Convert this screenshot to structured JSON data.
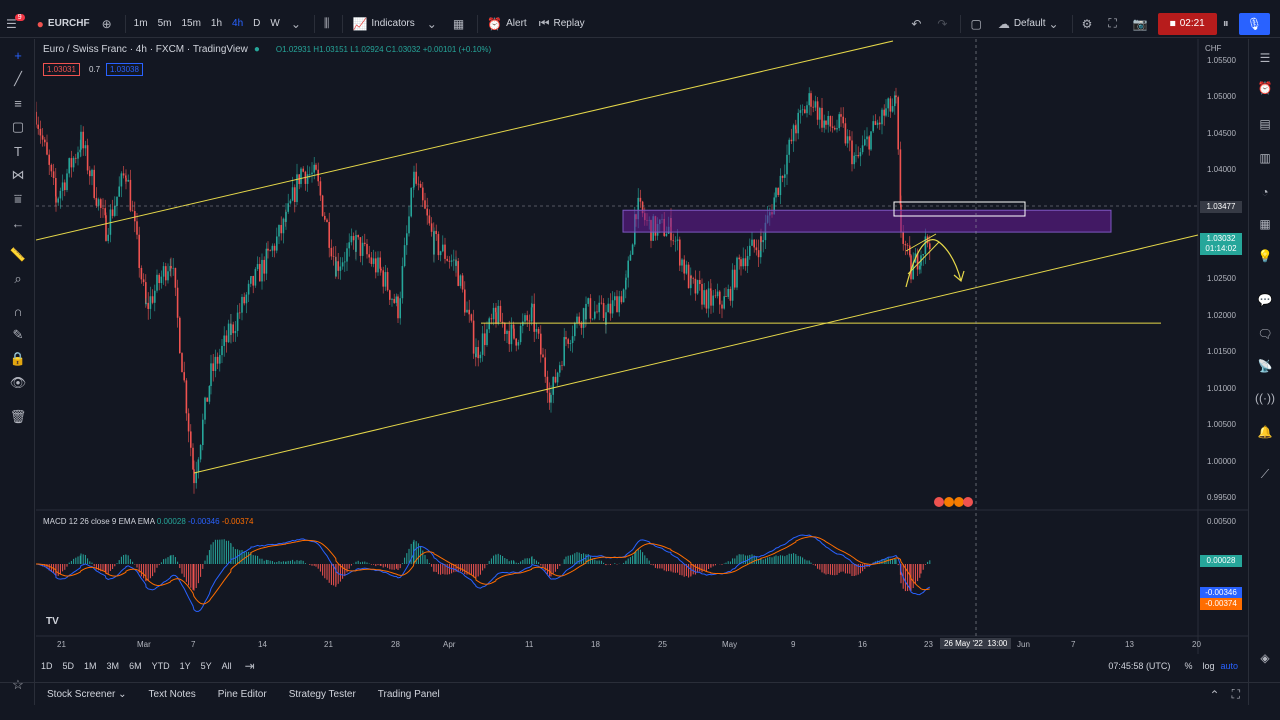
{
  "topbar": {
    "symbol": "EURCHF",
    "notif_count": "9",
    "timeframes": [
      "1m",
      "5m",
      "15m",
      "1h",
      "4h",
      "D",
      "W"
    ],
    "active_timeframe": "4h",
    "indicators_label": "Indicators",
    "alert_label": "Alert",
    "replay_label": "Replay",
    "layout_label": "Default",
    "record_time": "02:21"
  },
  "legend": {
    "title": "Euro / Swiss Franc · 4h · FXCM · TradingView",
    "ohlc": "O1.02931 H1.03151 L1.02924 C1.03032 +0.00101 (+0.10%)",
    "sell_price": "1.03031",
    "spread": "0.7",
    "buy_price": "1.03038"
  },
  "price_axis": {
    "currency": "CHF",
    "ticks": [
      "1.05500",
      "1.05000",
      "1.04500",
      "1.04000",
      "1.03500",
      "1.03000",
      "1.02500",
      "1.02000",
      "1.01500",
      "1.01000",
      "1.00500",
      "1.00000",
      "0.99500"
    ],
    "crosshair_price": "1.03477",
    "last_price": "1.03032",
    "countdown": "01:14:02"
  },
  "macd": {
    "label": "MACD 12 26 close 9 EMA EMA",
    "v1": "0.00028",
    "v2": "-0.00346",
    "v3": "-0.00374",
    "axis_top": "0.00500",
    "colors": {
      "macd": "#2962ff",
      "signal": "#ff6d00",
      "hist_pos": "#26a69a",
      "hist_neg": "#ef5350"
    }
  },
  "time_axis": {
    "labels": [
      "21",
      "Mar",
      "7",
      "14",
      "21",
      "28",
      "Apr",
      "11",
      "18",
      "25",
      "May",
      "9",
      "16",
      "23",
      "Jun",
      "7",
      "13",
      "20"
    ],
    "crosshair_date": "26 May '22",
    "crosshair_time": "13:00"
  },
  "ranges": [
    "1D",
    "5D",
    "1M",
    "3M",
    "6M",
    "YTD",
    "1Y",
    "5Y",
    "All"
  ],
  "clock": "07:45:58 (UTC)",
  "scale_opts": [
    "%",
    "log",
    "auto"
  ],
  "bottom_tabs": [
    "Stock Screener",
    "Text Notes",
    "Pine Editor",
    "Strategy Tester",
    "Trading Panel"
  ],
  "chart_data": {
    "type": "candlestick",
    "colors": {
      "up": "#26a69a",
      "down": "#ef5350",
      "drawing": "#e6d84a",
      "zone": "#6a1b9a"
    },
    "ylim": [
      0.9935,
      1.058
    ],
    "zone": [
      1.0315,
      1.0345
    ],
    "horizontal_line": 1.019,
    "anchors": [
      [
        0,
        1.048
      ],
      [
        20,
        1.036
      ],
      [
        45,
        1.044
      ],
      [
        70,
        1.032
      ],
      [
        90,
        1.04
      ],
      [
        110,
        1.021
      ],
      [
        135,
        1.028
      ],
      [
        158,
        0.998
      ],
      [
        175,
        1.012
      ],
      [
        195,
        1.018
      ],
      [
        215,
        1.024
      ],
      [
        232,
        1.028
      ],
      [
        250,
        1.033
      ],
      [
        265,
        1.04
      ],
      [
        280,
        1.039
      ],
      [
        300,
        1.027
      ],
      [
        320,
        1.03
      ],
      [
        345,
        1.026
      ],
      [
        362,
        1.021
      ],
      [
        378,
        1.039
      ],
      [
        398,
        1.03
      ],
      [
        420,
        1.027
      ],
      [
        440,
        1.015
      ],
      [
        460,
        1.02
      ],
      [
        478,
        1.017
      ],
      [
        496,
        1.02
      ],
      [
        515,
        1.009
      ],
      [
        530,
        1.017
      ],
      [
        550,
        1.021
      ],
      [
        570,
        1.02
      ],
      [
        590,
        1.024
      ],
      [
        600,
        1.035
      ],
      [
        615,
        1.032
      ],
      [
        635,
        1.032
      ],
      [
        655,
        1.024
      ],
      [
        675,
        1.022
      ],
      [
        690,
        1.022
      ],
      [
        705,
        1.028
      ],
      [
        725,
        1.03
      ],
      [
        740,
        1.037
      ],
      [
        760,
        1.046
      ],
      [
        775,
        1.05
      ],
      [
        790,
        1.046
      ],
      [
        805,
        1.046
      ],
      [
        820,
        1.041
      ],
      [
        835,
        1.045
      ],
      [
        850,
        1.048
      ],
      [
        860,
        1.049
      ],
      [
        865,
        1.032
      ],
      [
        875,
        1.026
      ],
      [
        885,
        1.029
      ],
      [
        895,
        1.031
      ]
    ]
  }
}
